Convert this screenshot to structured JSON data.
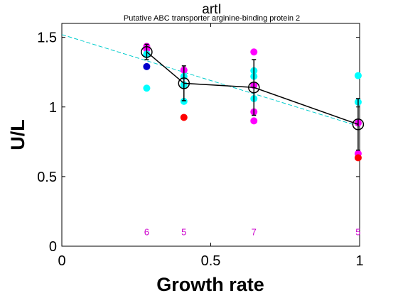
{
  "chart_data": {
    "type": "scatter",
    "title": "artI",
    "subtitle": "Putative ABC transporter arginine-binding protein 2",
    "xlabel": "Growth rate",
    "ylabel": "U/L",
    "xlim": [
      0,
      1
    ],
    "ylim": [
      0,
      1.6
    ],
    "xticks": [
      0,
      0.5,
      1
    ],
    "xtick_labels": [
      "0",
      "0.5",
      "1"
    ],
    "yticks": [
      0,
      0.5,
      1,
      1.5
    ],
    "ytick_labels": [
      "0",
      "0.5",
      "1",
      "1.5"
    ],
    "grid": false,
    "legend": "none",
    "colors": {
      "magenta": "#ff00ff",
      "cyan": "#00ffff",
      "blue": "#0000cc",
      "red": "#ff0000",
      "mean_line": "#000000",
      "fit_line": "#00cccc",
      "count_text": "#cc00cc"
    },
    "points": [
      {
        "x": 0.285,
        "y": 1.435,
        "color": "magenta"
      },
      {
        "x": 0.285,
        "y": 1.415,
        "color": "magenta"
      },
      {
        "x": 0.285,
        "y": 1.38,
        "color": "cyan"
      },
      {
        "x": 0.285,
        "y": 1.375,
        "color": "cyan"
      },
      {
        "x": 0.285,
        "y": 1.29,
        "color": "blue"
      },
      {
        "x": 0.285,
        "y": 1.135,
        "color": "cyan"
      },
      {
        "x": 0.41,
        "y": 1.265,
        "color": "magenta"
      },
      {
        "x": 0.41,
        "y": 1.22,
        "color": "cyan"
      },
      {
        "x": 0.41,
        "y": 1.16,
        "color": "cyan"
      },
      {
        "x": 0.41,
        "y": 1.04,
        "color": "cyan"
      },
      {
        "x": 0.41,
        "y": 0.925,
        "color": "red"
      },
      {
        "x": 0.645,
        "y": 1.395,
        "color": "magenta"
      },
      {
        "x": 0.645,
        "y": 1.26,
        "color": "cyan"
      },
      {
        "x": 0.645,
        "y": 1.22,
        "color": "cyan"
      },
      {
        "x": 0.645,
        "y": 1.155,
        "color": "magenta"
      },
      {
        "x": 0.645,
        "y": 1.06,
        "color": "cyan"
      },
      {
        "x": 0.645,
        "y": 0.965,
        "color": "magenta"
      },
      {
        "x": 0.645,
        "y": 0.9,
        "color": "magenta"
      },
      {
        "x": 0.995,
        "y": 1.225,
        "color": "cyan"
      },
      {
        "x": 0.995,
        "y": 1.035,
        "color": "cyan"
      },
      {
        "x": 0.995,
        "y": 0.885,
        "color": "magenta"
      },
      {
        "x": 0.995,
        "y": 0.665,
        "color": "magenta"
      },
      {
        "x": 0.995,
        "y": 0.635,
        "color": "red"
      }
    ],
    "means": [
      {
        "x": 0.285,
        "y": 1.395,
        "err": 0.055
      },
      {
        "x": 0.41,
        "y": 1.17,
        "err": 0.125
      },
      {
        "x": 0.645,
        "y": 1.14,
        "err": 0.2
      },
      {
        "x": 0.995,
        "y": 0.875,
        "err": 0.185
      }
    ],
    "fit_line": {
      "x": [
        0,
        1
      ],
      "y": [
        1.52,
        0.86
      ]
    },
    "counts": [
      {
        "x": 0.285,
        "label": "6"
      },
      {
        "x": 0.41,
        "label": "5"
      },
      {
        "x": 0.645,
        "label": "7"
      },
      {
        "x": 0.995,
        "label": "5"
      }
    ],
    "counts_y": 0.1
  }
}
